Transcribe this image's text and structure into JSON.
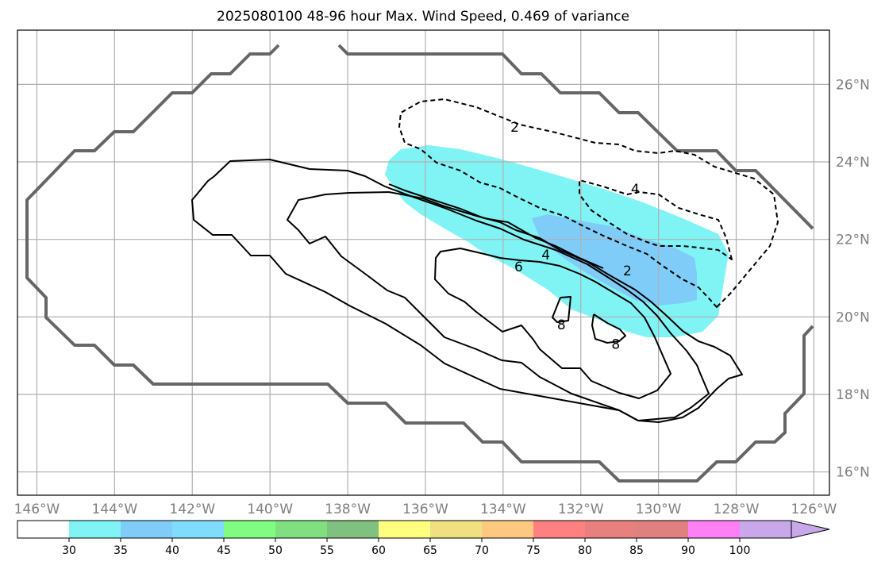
{
  "chart_data": {
    "type": "contour",
    "title": "2025080100 48-96 hour Max. Wind Speed, 0.469 of variance",
    "map": {
      "lon_ticks": [
        "146°W",
        "144°W",
        "142°W",
        "140°W",
        "138°W",
        "136°W",
        "134°W",
        "132°W",
        "130°W",
        "128°W",
        "126°W"
      ],
      "lat_ticks": [
        "16°N",
        "18°N",
        "20°N",
        "22°N",
        "24°N",
        "26°N"
      ],
      "lon_range": [
        -146.5,
        -125.6
      ],
      "lat_range": [
        15.4,
        27.4
      ],
      "grid": true
    },
    "colorbar": {
      "levels": [
        "30",
        "35",
        "40",
        "45",
        "50",
        "55",
        "60",
        "65",
        "70",
        "75",
        "80",
        "85",
        "90",
        "100"
      ],
      "colors": [
        "#ffffff",
        "#80f4f4",
        "#80ccf8",
        "#80dcfc",
        "#80fc80",
        "#80e080",
        "#80c080",
        "#ffff80",
        "#f0e080",
        "#ffc880",
        "#ff8080",
        "#e88080",
        "#e08080",
        "#ff80f4",
        "#c8a8e8"
      ],
      "extend": "max"
    },
    "filled_regions": [
      {
        "level": "30-35",
        "color": "#80f4f4"
      },
      {
        "level": "35-40",
        "color": "#80ccf8"
      }
    ],
    "contour_labels": [
      {
        "text": "2",
        "lon": -133.7,
        "lat": 24.9,
        "style": "dashed"
      },
      {
        "text": "4",
        "lon": -130.6,
        "lat": 23.3,
        "style": "dashed"
      },
      {
        "text": "2",
        "lon": -130.8,
        "lat": 21.2,
        "style": "solid"
      },
      {
        "text": "4",
        "lon": -132.9,
        "lat": 21.6,
        "style": "solid"
      },
      {
        "text": "6",
        "lon": -133.6,
        "lat": 21.3,
        "style": "solid"
      },
      {
        "text": "8",
        "lon": -132.5,
        "lat": 19.8,
        "style": "solid"
      },
      {
        "text": "8",
        "lon": -131.1,
        "lat": 19.3,
        "style": "solid"
      }
    ]
  }
}
